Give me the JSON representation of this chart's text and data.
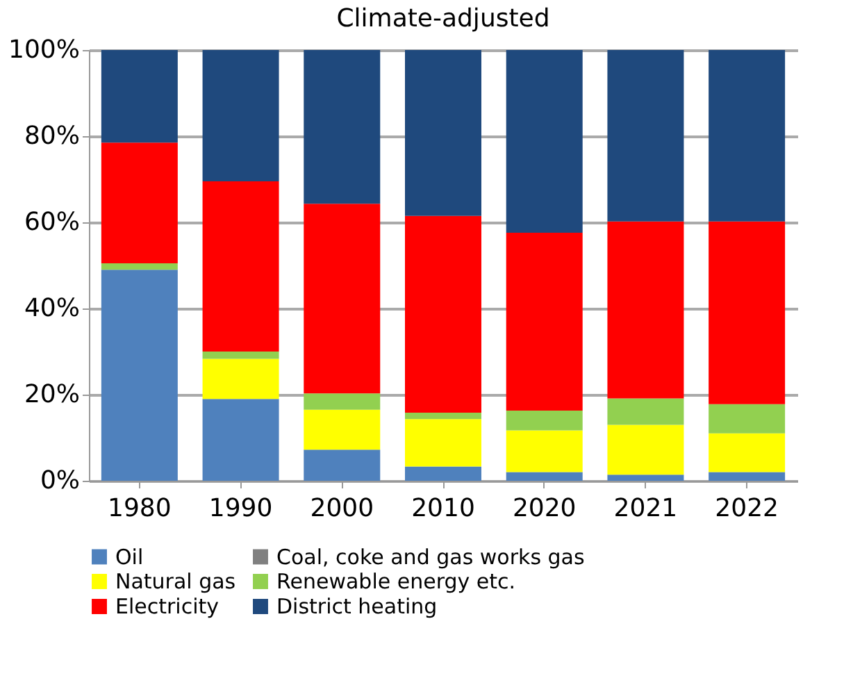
{
  "chart_data": {
    "type": "bar",
    "stacked": true,
    "title": "Climate-adjusted",
    "categories": [
      "1980",
      "1990",
      "2000",
      "2010",
      "2020",
      "2021",
      "2022"
    ],
    "series": [
      {
        "name": "Oil",
        "color": "#4f81bd",
        "values": [
          49,
          19,
          7.2,
          3.3,
          2.0,
          1.4,
          2.0
        ]
      },
      {
        "name": "Coal, coke and gas works gas",
        "color": "#808080",
        "values": [
          0,
          0,
          0,
          0,
          0,
          0,
          0
        ]
      },
      {
        "name": "Natural gas",
        "color": "#ffff00",
        "values": [
          0,
          9.3,
          9.3,
          11,
          9.7,
          11.6,
          9.0
        ]
      },
      {
        "name": "Renewable energy etc.",
        "color": "#92d050",
        "values": [
          1.5,
          1.7,
          3.8,
          1.5,
          4.6,
          6.1,
          6.8
        ]
      },
      {
        "name": "Electricity",
        "color": "#ff0000",
        "values": [
          28,
          39.5,
          44,
          45.7,
          41.3,
          41.1,
          42.4
        ]
      },
      {
        "name": "District heating",
        "color": "#1f497d",
        "values": [
          21.5,
          30.5,
          35.7,
          38.5,
          42.4,
          39.8,
          39.8
        ]
      }
    ],
    "ylim": [
      0,
      100
    ],
    "yticks": [
      {
        "value": 0,
        "label": "0%"
      },
      {
        "value": 20,
        "label": "20%"
      },
      {
        "value": 40,
        "label": "40%"
      },
      {
        "value": 60,
        "label": "60%"
      },
      {
        "value": 80,
        "label": "80%"
      },
      {
        "value": 100,
        "label": "100%"
      }
    ],
    "grid": "y",
    "legend": "bottom"
  }
}
